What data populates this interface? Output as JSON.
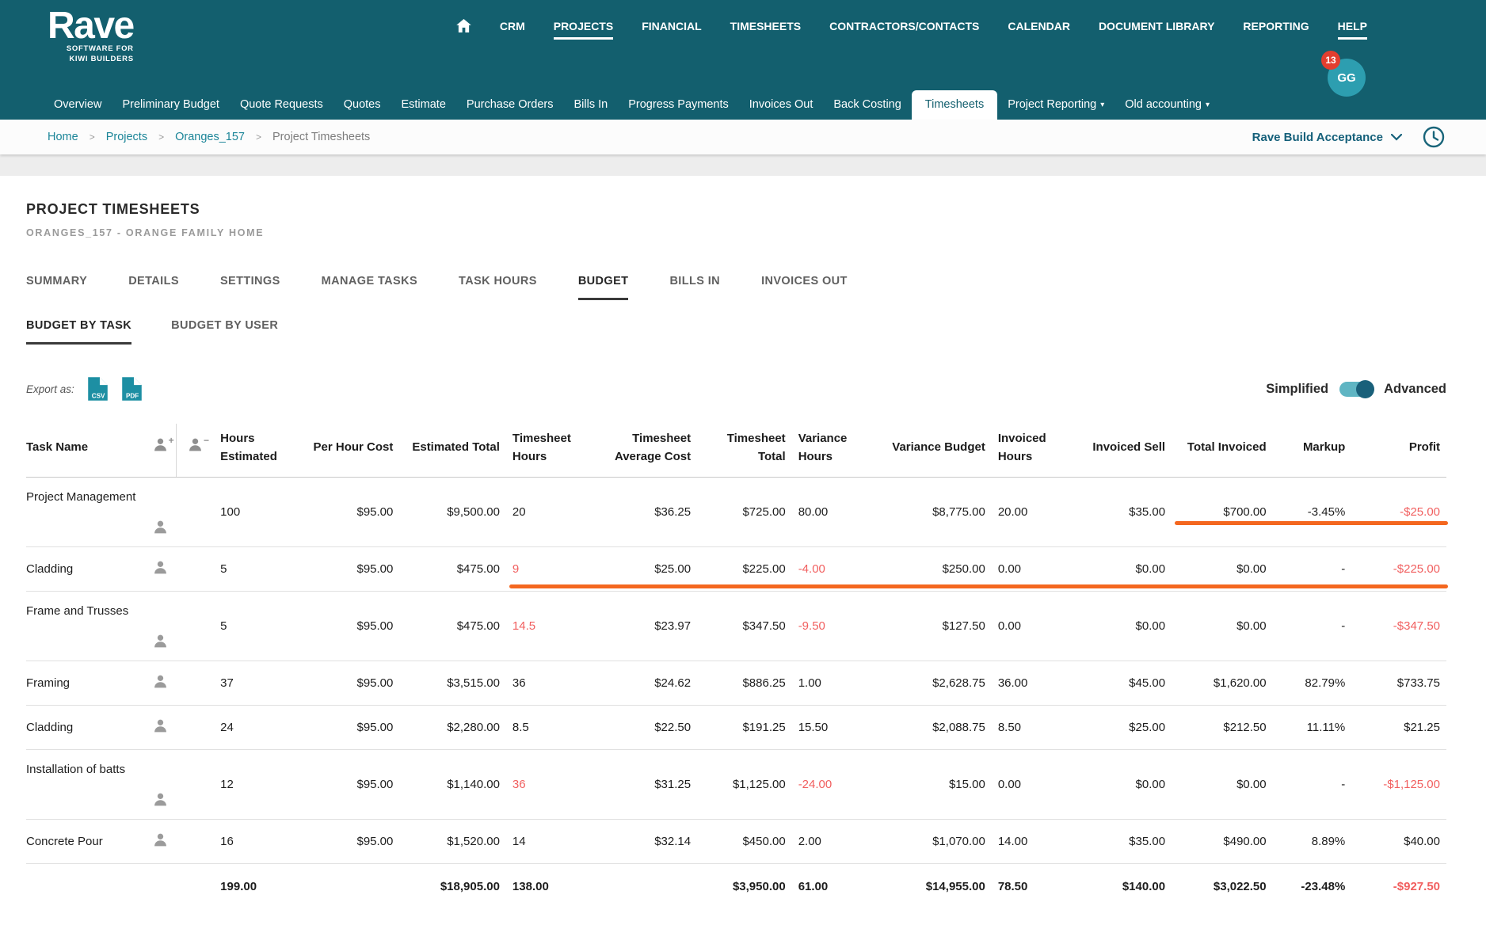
{
  "brand": {
    "name": "Rave",
    "tagline_line1": "SOFTWARE FOR",
    "tagline_line2": "KIWI BUILDERS"
  },
  "top_nav": {
    "items": [
      {
        "label": "",
        "icon": "home"
      },
      {
        "label": "CRM"
      },
      {
        "label": "PROJECTS",
        "underlined": true
      },
      {
        "label": "FINANCIAL"
      },
      {
        "label": "TIMESHEETS"
      },
      {
        "label": "CONTRACTORS/CONTACTS"
      },
      {
        "label": "CALENDAR"
      },
      {
        "label": "DOCUMENT LIBRARY"
      },
      {
        "label": "REPORTING"
      },
      {
        "label": "HELP",
        "underlined": true
      }
    ],
    "notification_count": "13",
    "avatar_initials": "GG"
  },
  "project_nav": {
    "items": [
      {
        "label": "Overview"
      },
      {
        "label": "Preliminary Budget"
      },
      {
        "label": "Quote Requests"
      },
      {
        "label": "Quotes"
      },
      {
        "label": "Estimate"
      },
      {
        "label": "Purchase Orders"
      },
      {
        "label": "Bills In"
      },
      {
        "label": "Progress Payments"
      },
      {
        "label": "Invoices Out"
      },
      {
        "label": "Back Costing"
      },
      {
        "label": "Timesheets",
        "active": true
      },
      {
        "label": "Project Reporting",
        "caret": true
      },
      {
        "label": "Old accounting",
        "caret": true
      }
    ]
  },
  "breadcrumb": {
    "items": [
      {
        "label": "Home",
        "link": true
      },
      {
        "label": "Projects",
        "link": true
      },
      {
        "label": "Oranges_157",
        "link": true
      },
      {
        "label": "Project Timesheets",
        "link": false
      }
    ],
    "project_status": "Rave Build Acceptance"
  },
  "page": {
    "title": "PROJECT TIMESHEETS",
    "subtitle": "ORANGES_157 - ORANGE FAMILY HOME"
  },
  "tabs": [
    {
      "label": "SUMMARY"
    },
    {
      "label": "DETAILS"
    },
    {
      "label": "SETTINGS"
    },
    {
      "label": "MANAGE TASKS"
    },
    {
      "label": "TASK HOURS"
    },
    {
      "label": "BUDGET",
      "active": true
    },
    {
      "label": "BILLS IN"
    },
    {
      "label": "INVOICES OUT"
    }
  ],
  "subtabs": [
    {
      "label": "BUDGET BY TASK",
      "active": true
    },
    {
      "label": "BUDGET BY USER"
    }
  ],
  "export": {
    "label": "Export as:",
    "csv_label": "CSV",
    "pdf_label": "PDF"
  },
  "view_toggle": {
    "left_label": "Simplified",
    "right_label": "Advanced",
    "active": "Advanced"
  },
  "table": {
    "columns": [
      "Task Name",
      "Hours Estimated",
      "Per Hour Cost",
      "Estimated Total",
      "Timesheet Hours",
      "Timesheet Average Cost",
      "Timesheet Total",
      "Variance Hours",
      "Variance Budget",
      "Invoiced Hours",
      "Invoiced Sell",
      "Total Invoiced",
      "Markup",
      "Profit"
    ],
    "icon_columns": [
      "person-add",
      "person-remove"
    ],
    "rows": [
      {
        "name": "Project Management",
        "tall": true,
        "values": [
          "100",
          "$95.00",
          "$9,500.00",
          "20",
          "$36.25",
          "$725.00",
          "80.00",
          "$8,775.00",
          "20.00",
          "$35.00",
          "$700.00",
          "-3.45%",
          "-$25.00"
        ],
        "red": [
          12
        ],
        "underline": {
          "from": 10,
          "to": 12
        }
      },
      {
        "name": "Cladding",
        "values": [
          "5",
          "$95.00",
          "$475.00",
          "9",
          "$25.00",
          "$225.00",
          "-4.00",
          "$250.00",
          "0.00",
          "$0.00",
          "$0.00",
          "-",
          "-$225.00"
        ],
        "red": [
          3,
          6,
          12
        ],
        "underline": {
          "from": 3,
          "to": 12
        }
      },
      {
        "name": "Frame and Trusses",
        "tall": true,
        "values": [
          "5",
          "$95.00",
          "$475.00",
          "14.5",
          "$23.97",
          "$347.50",
          "-9.50",
          "$127.50",
          "0.00",
          "$0.00",
          "$0.00",
          "-",
          "-$347.50"
        ],
        "red": [
          3,
          6,
          12
        ]
      },
      {
        "name": "Framing",
        "values": [
          "37",
          "$95.00",
          "$3,515.00",
          "36",
          "$24.62",
          "$886.25",
          "1.00",
          "$2,628.75",
          "36.00",
          "$45.00",
          "$1,620.00",
          "82.79%",
          "$733.75"
        ]
      },
      {
        "name": "Cladding",
        "values": [
          "24",
          "$95.00",
          "$2,280.00",
          "8.5",
          "$22.50",
          "$191.25",
          "15.50",
          "$2,088.75",
          "8.50",
          "$25.00",
          "$212.50",
          "11.11%",
          "$21.25"
        ]
      },
      {
        "name": "Installation of batts",
        "tall": true,
        "values": [
          "12",
          "$95.00",
          "$1,140.00",
          "36",
          "$31.25",
          "$1,125.00",
          "-24.00",
          "$15.00",
          "0.00",
          "$0.00",
          "$0.00",
          "-",
          "-$1,125.00"
        ],
        "red": [
          3,
          6,
          12
        ]
      },
      {
        "name": "Concrete Pour",
        "values": [
          "16",
          "$95.00",
          "$1,520.00",
          "14",
          "$32.14",
          "$450.00",
          "2.00",
          "$1,070.00",
          "14.00",
          "$35.00",
          "$490.00",
          "8.89%",
          "$40.00"
        ]
      }
    ],
    "totals": {
      "values": [
        "199.00",
        "",
        "$18,905.00",
        "138.00",
        "",
        "$3,950.00",
        "61.00",
        "$14,955.00",
        "78.50",
        "$140.00",
        "$3,022.50",
        "-23.48%",
        "-$927.50"
      ],
      "red": [
        12
      ]
    }
  },
  "colors": {
    "header_teal": "#135f6e",
    "accent_teal": "#1d8fa3",
    "link_teal": "#1b8598",
    "red_text": "#f15f5f",
    "orange_annotation": "#f4671f",
    "badge_red": "#e23e2f",
    "avatar_teal": "#2d9eb0"
  }
}
